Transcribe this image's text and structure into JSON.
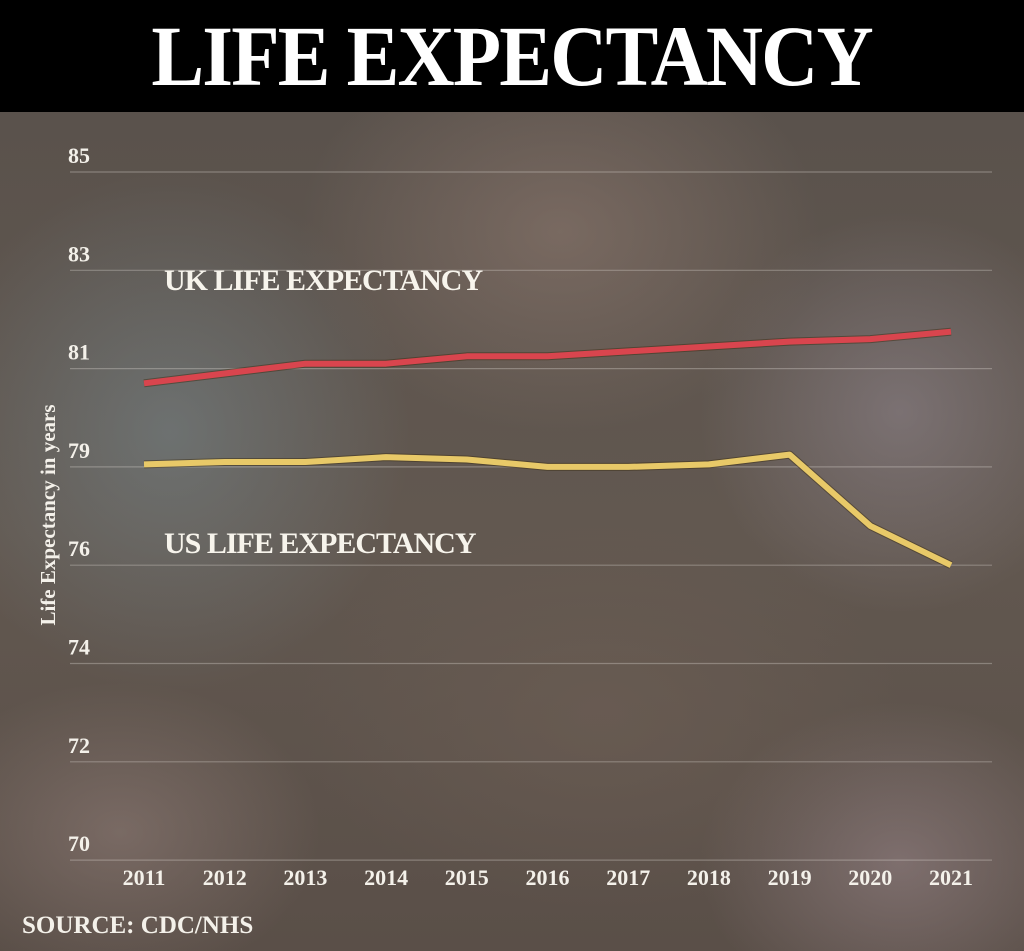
{
  "chart_data": {
    "type": "line",
    "title": "LIFE EXPECTANCY",
    "ylabel": "Life Expectancy in years",
    "xlabel": "",
    "source": "SOURCE: CDC/NHS",
    "x": [
      "2011",
      "2012",
      "2013",
      "2014",
      "2015",
      "2016",
      "2017",
      "2018",
      "2019",
      "2020",
      "2021"
    ],
    "y_ticks": [
      70,
      72,
      74,
      76,
      79,
      81,
      83,
      85
    ],
    "ylim": [
      70,
      85
    ],
    "grid": true,
    "series": [
      {
        "name": "UK LIFE EXPECTANCY",
        "color": "#d9454e",
        "values": [
          80.7,
          80.9,
          81.1,
          81.1,
          81.25,
          81.25,
          81.35,
          81.45,
          81.55,
          81.6,
          81.75
        ]
      },
      {
        "name": "US LIFE EXPECTANCY",
        "color": "#e8c968",
        "values": [
          79.05,
          79.1,
          79.1,
          79.2,
          79.15,
          79.0,
          79.0,
          79.05,
          79.25,
          77.2,
          76.0
        ]
      }
    ]
  }
}
